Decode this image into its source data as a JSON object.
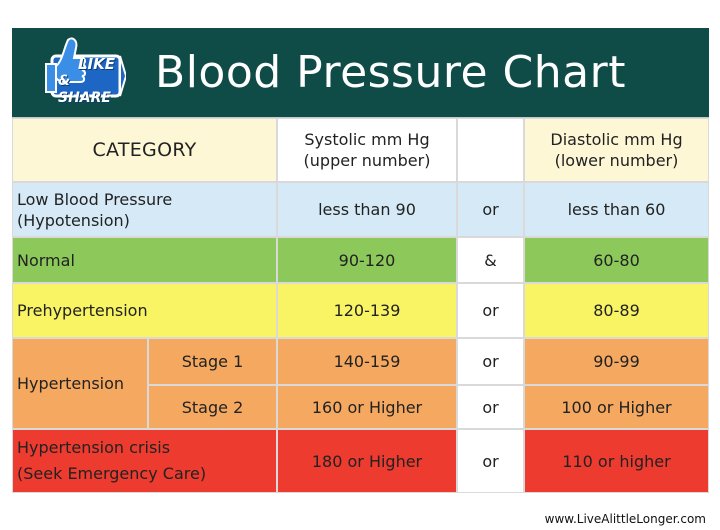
{
  "header": {
    "title": "Blood Pressure Chart",
    "badge_like": "LIKE",
    "badge_share": "& SHARE"
  },
  "columns": {
    "category": "CATEGORY",
    "systolic_line1": "Systolic mm Hg",
    "systolic_line2": "(upper number)",
    "diastolic_line1": "Diastolic mm Hg",
    "diastolic_line2": "(lower number)"
  },
  "rows": [
    {
      "category_line1": "Low Blood Pressure",
      "category_line2": "(Hypotension)",
      "systolic": "less than 90",
      "connector": "or",
      "diastolic": "less than 60"
    },
    {
      "category_line1": "Normal",
      "systolic": "90-120",
      "connector": "&",
      "diastolic": "60-80"
    },
    {
      "category_line1": "Prehypertension",
      "systolic": "120-139",
      "connector": "or",
      "diastolic": "80-89"
    },
    {
      "category_line1": "Hypertension",
      "stage": "Stage 1",
      "systolic": "140-159",
      "connector": "or",
      "diastolic": "90-99"
    },
    {
      "stage": "Stage 2",
      "systolic": "160 or Higher",
      "connector": "or",
      "diastolic": "100 or Higher"
    },
    {
      "category_line1": "Hypertension crisis",
      "category_line2": "(Seek Emergency Care)",
      "systolic": "180 or Higher",
      "connector": "or",
      "diastolic": "110 or higher"
    }
  ],
  "footer": {
    "site": "www.LiveAlittleLonger.com"
  },
  "colors": {
    "header_bg": "#0f4c48",
    "low": "#d5eaf6",
    "normal": "#8cc95a",
    "prehypertension": "#f9f463",
    "hypertension": "#f5a860",
    "crisis": "#ee3b2f"
  },
  "icons": [
    "thumbs-up-icon"
  ]
}
